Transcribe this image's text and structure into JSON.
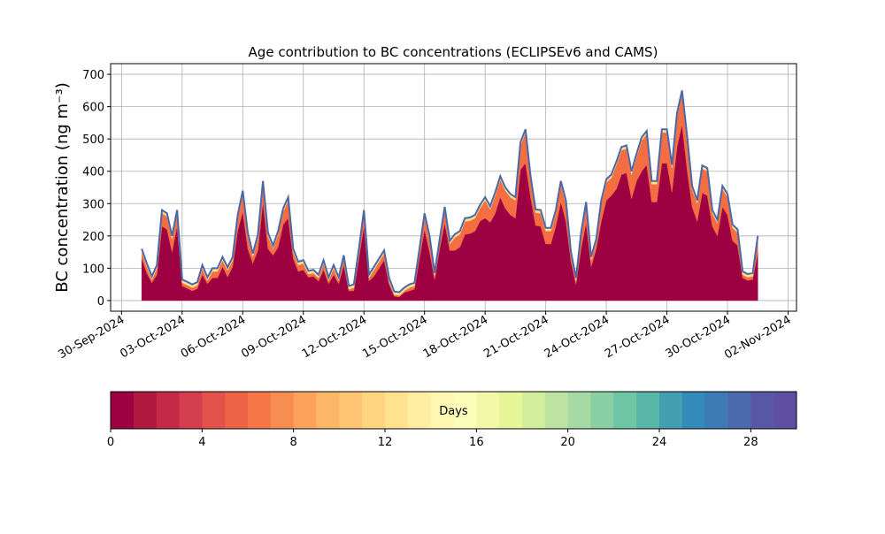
{
  "chart_data": {
    "type": "stacked_area",
    "title": "Age contribution to BC concentrations (ECLIPSEv6 and CAMS)",
    "y_label": "BC concentration (ng m⁻³)",
    "x": [
      "2024-10-01T00:00",
      "2024-10-01T06:00",
      "2024-10-01T12:00",
      "2024-10-01T18:00",
      "2024-10-02T00:00",
      "2024-10-02T06:00",
      "2024-10-02T12:00",
      "2024-10-02T18:00",
      "2024-10-03T00:00",
      "2024-10-03T06:00",
      "2024-10-03T12:00",
      "2024-10-03T18:00",
      "2024-10-04T00:00",
      "2024-10-04T06:00",
      "2024-10-04T12:00",
      "2024-10-04T18:00",
      "2024-10-05T00:00",
      "2024-10-05T06:00",
      "2024-10-05T12:00",
      "2024-10-05T18:00",
      "2024-10-06T00:00",
      "2024-10-06T06:00",
      "2024-10-06T12:00",
      "2024-10-06T18:00",
      "2024-10-07T00:00",
      "2024-10-07T06:00",
      "2024-10-07T12:00",
      "2024-10-07T18:00",
      "2024-10-08T00:00",
      "2024-10-08T06:00",
      "2024-10-08T12:00",
      "2024-10-08T18:00",
      "2024-10-09T00:00",
      "2024-10-09T06:00",
      "2024-10-09T12:00",
      "2024-10-09T18:00",
      "2024-10-10T00:00",
      "2024-10-10T06:00",
      "2024-10-10T12:00",
      "2024-10-10T18:00",
      "2024-10-11T00:00",
      "2024-10-11T06:00",
      "2024-10-11T12:00",
      "2024-10-11T18:00",
      "2024-10-12T00:00",
      "2024-10-12T06:00",
      "2024-10-12T12:00",
      "2024-10-12T18:00",
      "2024-10-13T00:00",
      "2024-10-13T06:00",
      "2024-10-13T12:00",
      "2024-10-13T18:00",
      "2024-10-14T00:00",
      "2024-10-14T06:00",
      "2024-10-14T12:00",
      "2024-10-14T18:00",
      "2024-10-15T00:00",
      "2024-10-15T06:00",
      "2024-10-15T12:00",
      "2024-10-15T18:00",
      "2024-10-16T00:00",
      "2024-10-16T06:00",
      "2024-10-16T12:00",
      "2024-10-16T18:00",
      "2024-10-17T00:00",
      "2024-10-17T06:00",
      "2024-10-17T12:00",
      "2024-10-17T18:00",
      "2024-10-18T00:00",
      "2024-10-18T06:00",
      "2024-10-18T12:00",
      "2024-10-18T18:00",
      "2024-10-19T00:00",
      "2024-10-19T06:00",
      "2024-10-19T12:00",
      "2024-10-19T18:00",
      "2024-10-20T00:00",
      "2024-10-20T06:00",
      "2024-10-20T12:00",
      "2024-10-20T18:00",
      "2024-10-21T00:00",
      "2024-10-21T06:00",
      "2024-10-21T12:00",
      "2024-10-21T18:00",
      "2024-10-22T00:00",
      "2024-10-22T06:00",
      "2024-10-22T12:00",
      "2024-10-22T18:00",
      "2024-10-23T00:00",
      "2024-10-23T06:00",
      "2024-10-23T12:00",
      "2024-10-23T18:00",
      "2024-10-24T00:00",
      "2024-10-24T06:00",
      "2024-10-24T12:00",
      "2024-10-24T18:00",
      "2024-10-25T00:00",
      "2024-10-25T06:00",
      "2024-10-25T12:00",
      "2024-10-25T18:00",
      "2024-10-26T00:00",
      "2024-10-26T06:00",
      "2024-10-26T12:00",
      "2024-10-26T18:00",
      "2024-10-27T00:00",
      "2024-10-27T06:00",
      "2024-10-27T12:00",
      "2024-10-27T18:00",
      "2024-10-28T00:00",
      "2024-10-28T06:00",
      "2024-10-28T12:00",
      "2024-10-28T18:00",
      "2024-10-29T00:00",
      "2024-10-29T06:00",
      "2024-10-29T12:00",
      "2024-10-29T18:00",
      "2024-10-30T00:00",
      "2024-10-30T06:00",
      "2024-10-30T12:00",
      "2024-10-30T18:00",
      "2024-10-31T00:00",
      "2024-10-31T06:00",
      "2024-10-31T12:00"
    ],
    "series": [
      {
        "color": "#9e0142",
        "values": [
          130,
          85,
          55,
          80,
          230,
          220,
          150,
          230,
          45,
          38,
          30,
          37,
          80,
          52,
          70,
          70,
          105,
          73,
          105,
          215,
          275,
          160,
          115,
          155,
          305,
          160,
          140,
          165,
          235,
          255,
          130,
          90,
          95,
          72,
          75,
          60,
          95,
          52,
          80,
          52,
          110,
          30,
          30,
          130,
          230,
          60,
          75,
          100,
          125,
          50,
          13,
          11,
          25,
          30,
          35,
          130,
          220,
          150,
          65,
          160,
          240,
          155,
          155,
          165,
          205,
          207,
          215,
          246,
          255,
          242,
          270,
          320,
          285,
          265,
          255,
          405,
          425,
          320,
          232,
          230,
          175,
          175,
          230,
          305,
          245,
          120,
          50,
          160,
          240,
          105,
          160,
          245,
          310,
          325,
          345,
          390,
          395,
          315,
          370,
          400,
          420,
          305,
          305,
          425,
          425,
          335,
          475,
          545,
          405,
          290,
          245,
          333,
          325,
          230,
          200,
          290,
          265,
          185,
          170,
          70,
          62,
          65,
          150
        ]
      },
      {
        "color": "#f46d43",
        "values": [
          20,
          20,
          10,
          20,
          40,
          40,
          40,
          40,
          10,
          10,
          10,
          10,
          20,
          10,
          20,
          20,
          20,
          20,
          20,
          40,
          55,
          40,
          20,
          40,
          55,
          40,
          20,
          40,
          40,
          55,
          20,
          20,
          20,
          10,
          10,
          10,
          20,
          10,
          20,
          10,
          20,
          5,
          10,
          20,
          40,
          10,
          20,
          20,
          20,
          10,
          5,
          5,
          5,
          10,
          10,
          20,
          40,
          40,
          10,
          20,
          40,
          20,
          40,
          40,
          40,
          40,
          40,
          40,
          55,
          40,
          55,
          55,
          55,
          55,
          55,
          75,
          95,
          55,
          40,
          40,
          40,
          40,
          40,
          55,
          55,
          20,
          10,
          40,
          55,
          20,
          20,
          55,
          55,
          55,
          75,
          75,
          75,
          75,
          75,
          95,
          95,
          55,
          55,
          95,
          95,
          75,
          95,
          95,
          95,
          55,
          55,
          75,
          75,
          40,
          40,
          55,
          55,
          40,
          40,
          10,
          10,
          10,
          40
        ]
      },
      {
        "color": "#fee08b",
        "values": [
          10,
          10,
          10,
          10,
          10,
          10,
          10,
          10,
          10,
          10,
          10,
          10,
          10,
          10,
          10,
          10,
          10,
          10,
          10,
          10,
          10,
          10,
          10,
          10,
          10,
          10,
          10,
          10,
          10,
          10,
          10,
          10,
          10,
          10,
          10,
          10,
          10,
          10,
          10,
          10,
          10,
          10,
          10,
          10,
          10,
          10,
          10,
          10,
          10,
          10,
          10,
          10,
          10,
          10,
          10,
          10,
          10,
          10,
          10,
          10,
          10,
          10,
          10,
          10,
          10,
          10,
          10,
          10,
          10,
          10,
          10,
          10,
          10,
          10,
          10,
          10,
          10,
          10,
          10,
          10,
          10,
          10,
          10,
          10,
          10,
          10,
          10,
          10,
          10,
          10,
          10,
          10,
          10,
          10,
          10,
          10,
          10,
          10,
          10,
          10,
          10,
          10,
          10,
          10,
          10,
          10,
          10,
          10,
          10,
          10,
          10,
          10,
          10,
          10,
          10,
          10,
          10,
          10,
          10,
          10,
          10,
          10,
          10
        ]
      }
    ],
    "line_color": "#4a67a8",
    "xlim": [
      "2024-09-29T11:00",
      "2024-11-02T10:00"
    ],
    "xticks": [
      {
        "value": "2024-09-30",
        "label": "30-Sep-2024"
      },
      {
        "value": "2024-10-03",
        "label": "03-Oct-2024"
      },
      {
        "value": "2024-10-06",
        "label": "06-Oct-2024"
      },
      {
        "value": "2024-10-09",
        "label": "09-Oct-2024"
      },
      {
        "value": "2024-10-12",
        "label": "12-Oct-2024"
      },
      {
        "value": "2024-10-15",
        "label": "15-Oct-2024"
      },
      {
        "value": "2024-10-18",
        "label": "18-Oct-2024"
      },
      {
        "value": "2024-10-21",
        "label": "21-Oct-2024"
      },
      {
        "value": "2024-10-24",
        "label": "24-Oct-2024"
      },
      {
        "value": "2024-10-27",
        "label": "27-Oct-2024"
      },
      {
        "value": "2024-10-30",
        "label": "30-Oct-2024"
      },
      {
        "value": "2024-11-02",
        "label": "02-Nov-2024"
      }
    ],
    "ylim": [
      -33,
      733
    ],
    "yticks": [
      0,
      100,
      200,
      300,
      400,
      500,
      600,
      700
    ],
    "grid": true,
    "colorbar": {
      "label": "Days",
      "lim": [
        0,
        30
      ],
      "ticks": [
        0,
        4,
        8,
        12,
        16,
        20,
        24,
        28
      ],
      "colors": [
        "#9e0142",
        "#b0173f",
        "#c42a47",
        "#d53e4f",
        "#e2514a",
        "#ec6346",
        "#f57748",
        "#f88d52",
        "#fba35c",
        "#fdb567",
        "#fec574",
        "#fed481",
        "#fee28f",
        "#ffeea1",
        "#fff8b3",
        "#fbfdb9",
        "#f1f9a9",
        "#e6f598",
        "#d2ed9b",
        "#bce4a0",
        "#a5daa4",
        "#8acfa4",
        "#70c5a4",
        "#5ab5a9",
        "#449fb0",
        "#348ab9",
        "#3d7ab6",
        "#4b69ad",
        "#5757a5",
        "#5e4fa2"
      ]
    }
  }
}
